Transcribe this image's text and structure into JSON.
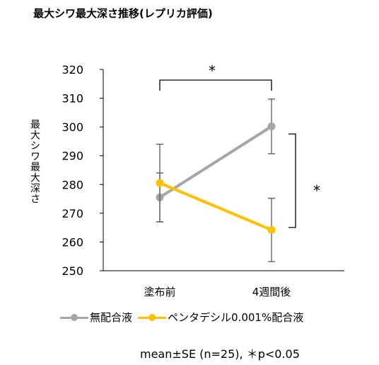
{
  "title": "最大シワ最大深さ推移(レプリカ評価)",
  "footnote": "mean±SE (n=25),  ＊p<0.05",
  "chart_data": {
    "type": "line",
    "title": "最大シワ最大深さ推移(レプリカ評価)",
    "ylabel": "最大シワ最大深さ",
    "xlabel": "",
    "categories": [
      "塗布前",
      "4週間後"
    ],
    "ylim": [
      250,
      320
    ],
    "yticks": [
      250,
      260,
      270,
      280,
      290,
      300,
      310,
      320
    ],
    "grid": false,
    "legend_position": "bottom",
    "series": [
      {
        "name": "無配合液",
        "color": "#a6a6a6",
        "values": [
          275.5,
          300.2
        ],
        "se": [
          8.5,
          9.5
        ]
      },
      {
        "name": "ペンタデシル0.001%配合液",
        "color": "#ffc000",
        "values": [
          280.5,
          264.2
        ],
        "se": [
          13.5,
          11
        ]
      }
    ],
    "annotations": [
      {
        "label": "*",
        "type": "bracket-top",
        "between": [
          "塗布前",
          "4週間後"
        ]
      },
      {
        "label": "*",
        "type": "bracket-right",
        "at": "4週間後"
      }
    ]
  }
}
